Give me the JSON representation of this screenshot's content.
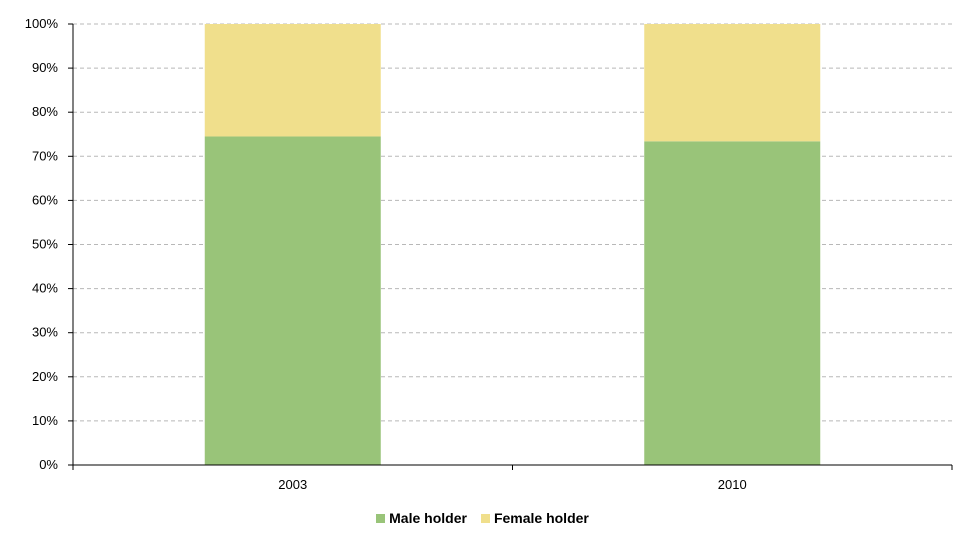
{
  "chart_data": {
    "type": "bar",
    "stacked": true,
    "categories": [
      "2003",
      "2010"
    ],
    "series": [
      {
        "name": "Male holder",
        "values": [
          74.5,
          73.4
        ],
        "color": "#99c479"
      },
      {
        "name": "Female holder",
        "values": [
          25.5,
          26.6
        ],
        "color": "#f0df8c"
      }
    ],
    "y_ticks": [
      "0%",
      "10%",
      "20%",
      "30%",
      "40%",
      "50%",
      "60%",
      "70%",
      "80%",
      "90%",
      "100%"
    ],
    "ylim": [
      0,
      100
    ],
    "grid": true,
    "legend_position": "bottom",
    "title": "",
    "xlabel": "",
    "ylabel": ""
  }
}
